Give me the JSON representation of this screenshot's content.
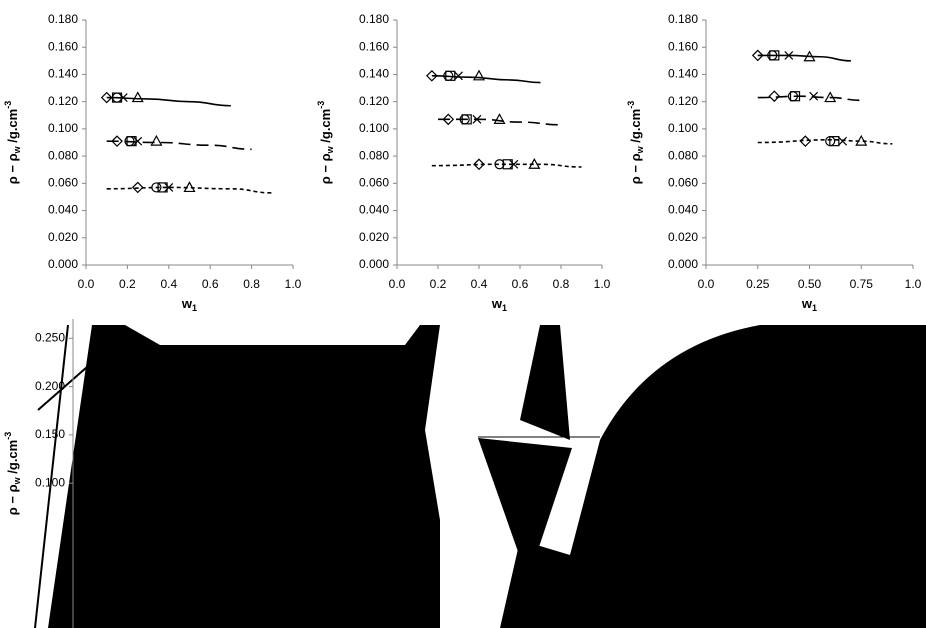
{
  "chart_data": [
    {
      "type": "line",
      "x_label": {
        "text": "w",
        "sub": "1"
      },
      "y_label": {
        "text": "ρ − ρ",
        "sub": "w",
        "text2": " /g.cm",
        "sup": "-3"
      },
      "xlim": [
        0,
        1
      ],
      "ylim": [
        0,
        0.18
      ],
      "xticks": [
        {
          "value": 0,
          "label": "0.0"
        },
        {
          "value": 0.2,
          "label": "0.2"
        },
        {
          "value": 0.4,
          "label": "0.4"
        },
        {
          "value": 0.6,
          "label": "0.6"
        },
        {
          "value": 0.8,
          "label": "0.8"
        },
        {
          "value": 1,
          "label": "1.0"
        }
      ],
      "yticks": [
        {
          "value": 0,
          "label": "0.000"
        },
        {
          "value": 0.02,
          "label": "0.020"
        },
        {
          "value": 0.04,
          "label": "0.040"
        },
        {
          "value": 0.06,
          "label": "0.060"
        },
        {
          "value": 0.08,
          "label": "0.080"
        },
        {
          "value": 0.1,
          "label": "0.100"
        },
        {
          "value": 0.12,
          "label": "0.120"
        },
        {
          "value": 0.14,
          "label": "0.140"
        },
        {
          "value": 0.16,
          "label": "0.160"
        },
        {
          "value": 0.18,
          "label": "0.180"
        }
      ],
      "lines": [
        {
          "style": "solid",
          "x": [
            0.1,
            0.3,
            0.5,
            0.7
          ],
          "values": [
            0.123,
            0.122,
            0.12,
            0.117
          ]
        },
        {
          "style": "long-dash",
          "x": [
            0.1,
            0.35,
            0.6,
            0.8
          ],
          "values": [
            0.091,
            0.09,
            0.088,
            0.085
          ]
        },
        {
          "style": "short-dash",
          "x": [
            0.1,
            0.4,
            0.7,
            0.9
          ],
          "values": [
            0.056,
            0.057,
            0.056,
            0.053
          ]
        }
      ],
      "points": [
        {
          "marker": "diamond",
          "x": [
            0.1,
            0.15,
            0.25
          ],
          "values": [
            0.123,
            0.091,
            0.057
          ]
        },
        {
          "marker": "circle",
          "x": [
            0.15,
            0.21,
            0.34
          ],
          "values": [
            0.123,
            0.091,
            0.057
          ]
        },
        {
          "marker": "square",
          "x": [
            0.15,
            0.22,
            0.37
          ],
          "values": [
            0.123,
            0.091,
            0.057
          ]
        },
        {
          "marker": "cross",
          "x": [
            0.18,
            0.25,
            0.4
          ],
          "values": [
            0.123,
            0.091,
            0.057
          ]
        },
        {
          "marker": "triangle",
          "x": [
            0.25,
            0.34,
            0.5
          ],
          "values": [
            0.123,
            0.091,
            0.057
          ]
        }
      ]
    },
    {
      "type": "line",
      "x_label": {
        "text": "w",
        "sub": "1"
      },
      "y_label": {
        "text": "ρ − ρ",
        "sub": "w",
        "text2": " /g.cm",
        "sup": "-3"
      },
      "xlim": [
        0,
        1
      ],
      "ylim": [
        0,
        0.18
      ],
      "xticks": [
        {
          "value": 0,
          "label": "0.0"
        },
        {
          "value": 0.2,
          "label": "0.2"
        },
        {
          "value": 0.4,
          "label": "0.4"
        },
        {
          "value": 0.6,
          "label": "0.6"
        },
        {
          "value": 0.8,
          "label": "0.8"
        },
        {
          "value": 1,
          "label": "1.0"
        }
      ],
      "yticks": [
        {
          "value": 0,
          "label": "0.000"
        },
        {
          "value": 0.02,
          "label": "0.020"
        },
        {
          "value": 0.04,
          "label": "0.040"
        },
        {
          "value": 0.06,
          "label": "0.060"
        },
        {
          "value": 0.08,
          "label": "0.080"
        },
        {
          "value": 0.1,
          "label": "0.100"
        },
        {
          "value": 0.12,
          "label": "0.120"
        },
        {
          "value": 0.14,
          "label": "0.140"
        },
        {
          "value": 0.16,
          "label": "0.160"
        },
        {
          "value": 0.18,
          "label": "0.180"
        }
      ],
      "lines": [
        {
          "style": "solid",
          "x": [
            0.17,
            0.35,
            0.55,
            0.7
          ],
          "values": [
            0.139,
            0.138,
            0.136,
            0.134
          ]
        },
        {
          "style": "long-dash",
          "x": [
            0.2,
            0.4,
            0.6,
            0.8
          ],
          "values": [
            0.107,
            0.107,
            0.105,
            0.103
          ]
        },
        {
          "style": "short-dash",
          "x": [
            0.17,
            0.5,
            0.7,
            0.9
          ],
          "values": [
            0.073,
            0.074,
            0.074,
            0.072
          ]
        }
      ],
      "points": [
        {
          "marker": "diamond",
          "x": [
            0.17,
            0.25,
            0.4
          ],
          "values": [
            0.139,
            0.107,
            0.074
          ]
        },
        {
          "marker": "circle",
          "x": [
            0.25,
            0.33,
            0.5
          ],
          "values": [
            0.139,
            0.107,
            0.074
          ]
        },
        {
          "marker": "square",
          "x": [
            0.26,
            0.34,
            0.54
          ],
          "values": [
            0.139,
            0.107,
            0.074
          ]
        },
        {
          "marker": "cross",
          "x": [
            0.3,
            0.39,
            0.57
          ],
          "values": [
            0.139,
            0.107,
            0.074
          ]
        },
        {
          "marker": "triangle",
          "x": [
            0.4,
            0.5,
            0.67
          ],
          "values": [
            0.139,
            0.107,
            0.074
          ]
        }
      ]
    },
    {
      "type": "line",
      "x_label": {
        "text": "w",
        "sub": "1"
      },
      "y_label": {
        "text": "ρ − ρ",
        "sub": "w",
        "text2": " /g.cm",
        "sup": "-3"
      },
      "xlim": [
        0,
        1
      ],
      "ylim": [
        0,
        0.18
      ],
      "xticks": [
        {
          "value": 0,
          "label": "0.0"
        },
        {
          "value": 0.25,
          "label": "0.25"
        },
        {
          "value": 0.5,
          "label": "0.50"
        },
        {
          "value": 0.75,
          "label": "0.75"
        },
        {
          "value": 1,
          "label": "1.0"
        }
      ],
      "yticks": [
        {
          "value": 0,
          "label": "0.000"
        },
        {
          "value": 0.02,
          "label": "0.020"
        },
        {
          "value": 0.04,
          "label": "0.040"
        },
        {
          "value": 0.06,
          "label": "0.060"
        },
        {
          "value": 0.08,
          "label": "0.080"
        },
        {
          "value": 0.1,
          "label": "0.100"
        },
        {
          "value": 0.12,
          "label": "0.120"
        },
        {
          "value": 0.14,
          "label": "0.140"
        },
        {
          "value": 0.16,
          "label": "0.160"
        },
        {
          "value": 0.18,
          "label": "0.180"
        }
      ],
      "lines": [
        {
          "style": "solid",
          "x": [
            0.25,
            0.4,
            0.55,
            0.7
          ],
          "values": [
            0.154,
            0.154,
            0.153,
            0.15
          ]
        },
        {
          "style": "long-dash",
          "x": [
            0.25,
            0.45,
            0.6,
            0.75
          ],
          "values": [
            0.123,
            0.124,
            0.123,
            0.121
          ]
        },
        {
          "style": "short-dash",
          "x": [
            0.25,
            0.6,
            0.75,
            0.9
          ],
          "values": [
            0.09,
            0.092,
            0.091,
            0.089
          ]
        }
      ],
      "points": [
        {
          "marker": "diamond",
          "x": [
            0.25,
            0.33,
            0.48
          ],
          "values": [
            0.154,
            0.124,
            0.091
          ]
        },
        {
          "marker": "circle",
          "x": [
            0.32,
            0.42,
            0.6
          ],
          "values": [
            0.154,
            0.124,
            0.091
          ]
        },
        {
          "marker": "square",
          "x": [
            0.33,
            0.43,
            0.62
          ],
          "values": [
            0.154,
            0.124,
            0.091
          ]
        },
        {
          "marker": "cross",
          "x": [
            0.4,
            0.52,
            0.66
          ],
          "values": [
            0.154,
            0.124,
            0.091
          ]
        },
        {
          "marker": "triangle",
          "x": [
            0.5,
            0.6,
            0.75
          ],
          "values": [
            0.153,
            0.123,
            0.091
          ]
        }
      ]
    },
    {
      "type": "line",
      "y_label": {
        "text": "ρ − ρ",
        "sub": "w",
        "text2": " /g.cm",
        "sup": "-3"
      },
      "ylim": [
        -0.05,
        0.27
      ],
      "yticks": [
        {
          "value": 0.1,
          "label": "0.100"
        },
        {
          "value": 0.15,
          "label": "0.150"
        },
        {
          "value": 0.2,
          "label": "0.200"
        },
        {
          "value": 0.25,
          "label": "0.250"
        }
      ]
    }
  ]
}
